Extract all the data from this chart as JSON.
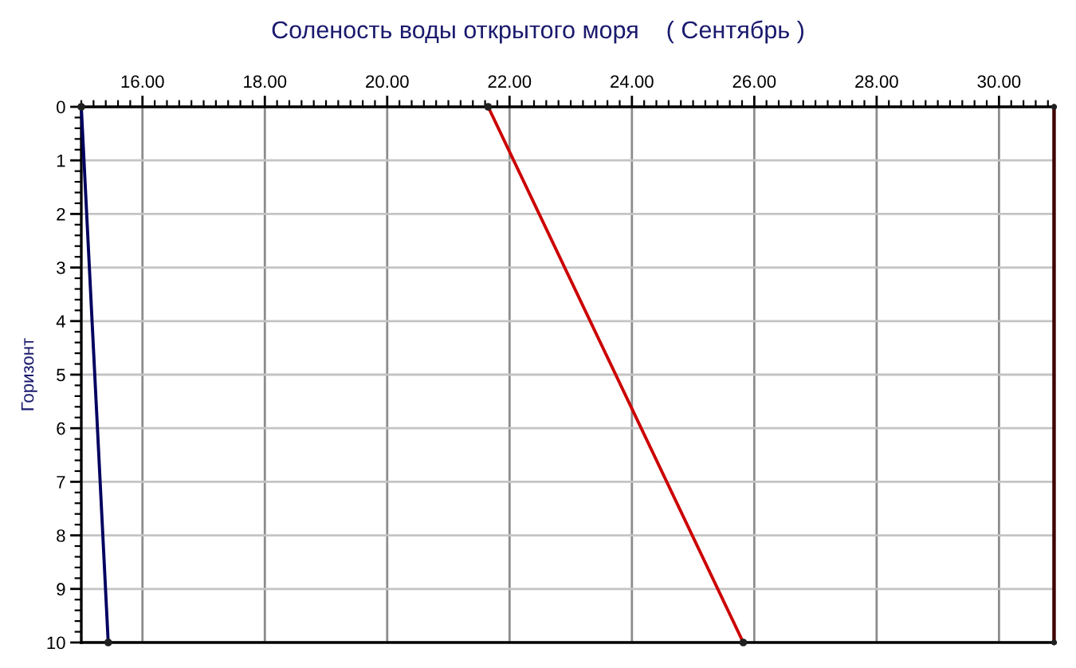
{
  "chart_data": {
    "type": "line",
    "title": "Соленость воды открытого моря    ( Сентябрь )",
    "ylabel": "Горизонт",
    "series": [
      {
        "color": "#000060",
        "x": [
          15.0,
          15.44
        ],
        "values": [
          0,
          10
        ]
      },
      {
        "color": "#cc0000",
        "x": [
          21.65,
          25.82
        ],
        "values": [
          0,
          10
        ]
      },
      {
        "type": "scatter",
        "color": "#202020",
        "x": [
          30.9,
          30.9
        ],
        "values": [
          0,
          10
        ]
      }
    ],
    "ref_lines": [
      {
        "axis": "x",
        "value": 30.9,
        "color": "#400000",
        "line_style": "solid"
      }
    ],
    "xlim": [
      15,
      30.92
    ],
    "xticks": [
      {
        "value": 16,
        "label": "16.00"
      },
      {
        "value": 18,
        "label": "18.00"
      },
      {
        "value": 20,
        "label": "20.00"
      },
      {
        "value": 22,
        "label": "22.00"
      },
      {
        "value": 24,
        "label": "24.00"
      },
      {
        "value": 26,
        "label": "26.00"
      },
      {
        "value": 28,
        "label": "28.00"
      },
      {
        "value": 30,
        "label": "30.00"
      }
    ],
    "ylim": [
      10,
      0
    ],
    "yticks": [
      0,
      1,
      2,
      3,
      4,
      5,
      6,
      7,
      8,
      9,
      10
    ],
    "grid": true,
    "marker": "circle",
    "line_style": "solid"
  }
}
